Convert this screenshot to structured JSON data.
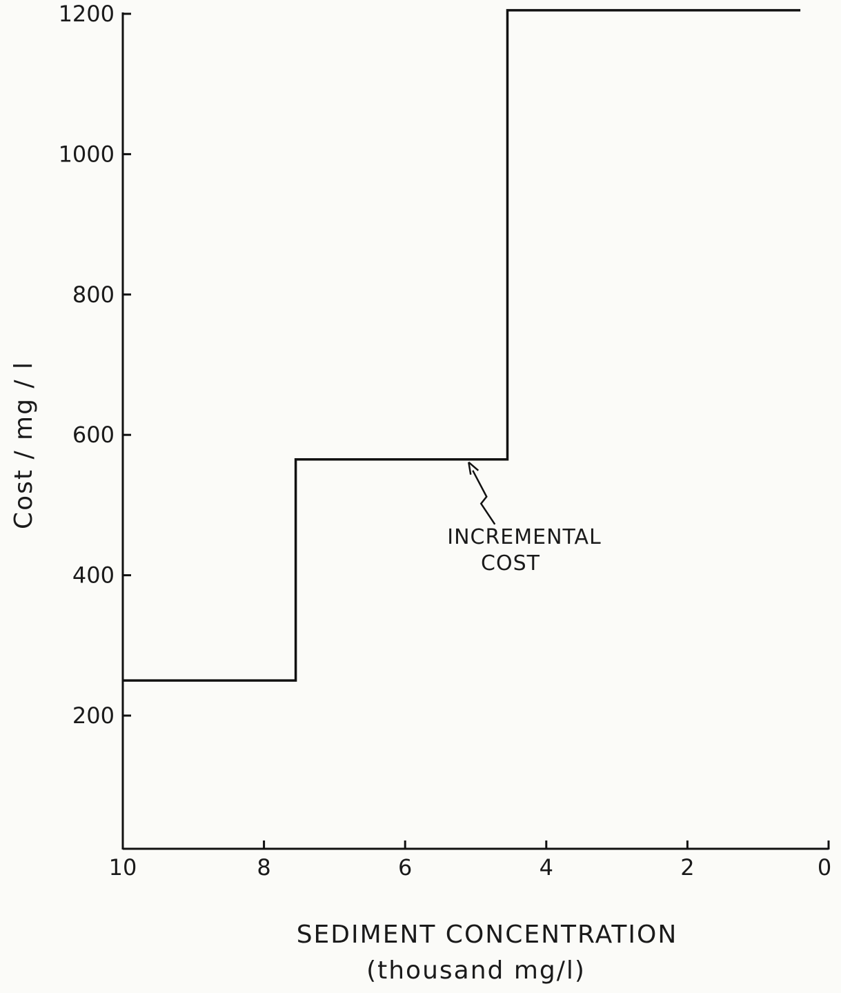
{
  "chart_data": {
    "type": "line",
    "step": true,
    "xlabel": "SEDIMENT CONCENTRATION",
    "xlabel_units": "(thousand mg/l)",
    "ylabel": "Cost / mg / l",
    "x_reversed": true,
    "xlim": [
      10,
      0
    ],
    "ylim": [
      0,
      1200
    ],
    "x_ticks": [
      10,
      8,
      6,
      4,
      2,
      0
    ],
    "x_tick_labels": [
      "10",
      "8",
      "6",
      "4",
      "2",
      "0"
    ],
    "y_ticks": [
      200,
      400,
      600,
      800,
      1000,
      1200
    ],
    "y_tick_labels": [
      "200",
      "400",
      "600",
      "800",
      "1000",
      "1200"
    ],
    "grid": false,
    "legend": "none",
    "series": [
      {
        "x": [
          10,
          7.55,
          7.55,
          4.55,
          4.55,
          0.4
        ],
        "y": [
          250,
          250,
          565,
          565,
          1205,
          1205
        ]
      }
    ],
    "annotations": [
      {
        "text_lines": [
          "INCREMENTAL",
          "COST"
        ],
        "points_to": {
          "x": 5.1,
          "y": 565
        }
      }
    ],
    "colors": {
      "line": "#111111",
      "background": "#fbfbf8"
    }
  }
}
